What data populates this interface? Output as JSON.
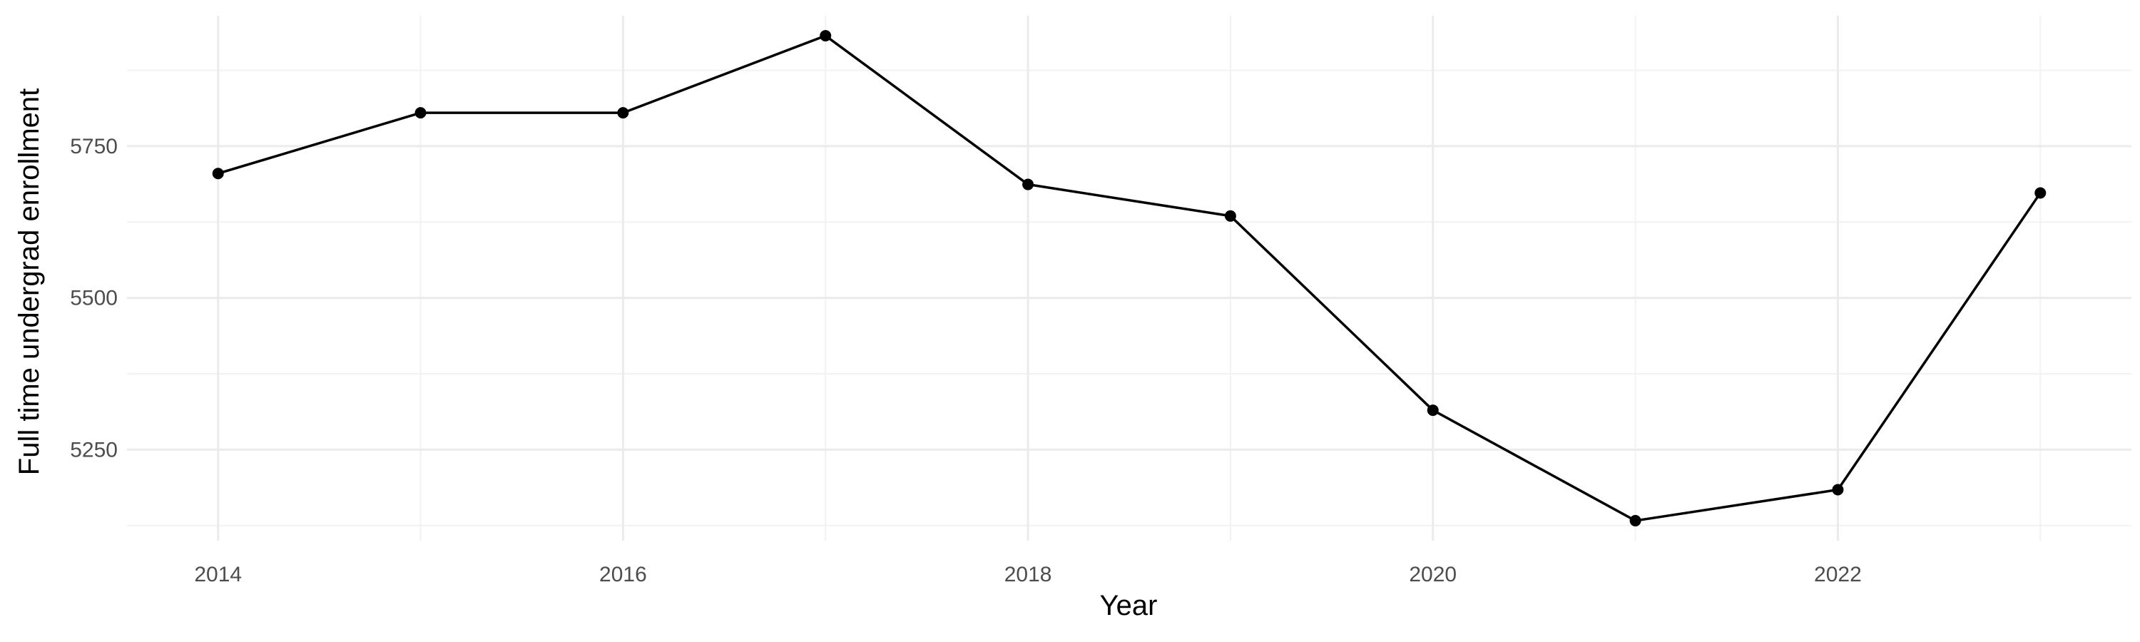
{
  "chart_data": {
    "type": "line",
    "title": "",
    "xlabel": "Year",
    "ylabel": "Full time undergrad enrollment",
    "x": [
      2014,
      2015,
      2016,
      2017,
      2018,
      2019,
      2020,
      2021,
      2022,
      2023
    ],
    "series": [
      {
        "values": [
          5705,
          5805,
          5805,
          5932,
          5687,
          5635,
          5315,
          5133,
          5184,
          5673
        ]
      }
    ],
    "xlim": [
      2013.55,
      2023.45
    ],
    "ylim": [
      5100,
      5965
    ],
    "x_ticks": [
      2014,
      2016,
      2018,
      2020,
      2022
    ],
    "x_tick_labels": [
      "2014",
      "2016",
      "2018",
      "2020",
      "2022"
    ],
    "x_minor_ticks": [
      2015,
      2017,
      2019,
      2021,
      2023
    ],
    "y_ticks": [
      5250,
      5500,
      5750
    ],
    "y_tick_labels": [
      "5250",
      "5500",
      "5750"
    ],
    "y_minor_ticks": [
      5125,
      5375,
      5625,
      5875
    ],
    "grid": true,
    "legend": "none",
    "colors": {
      "line": "#000000",
      "point": "#000000",
      "grid_major": "#ebebeb",
      "grid_minor": "#f2f2f2",
      "tick_text": "#4d4d4d",
      "title_text": "#000000"
    }
  }
}
